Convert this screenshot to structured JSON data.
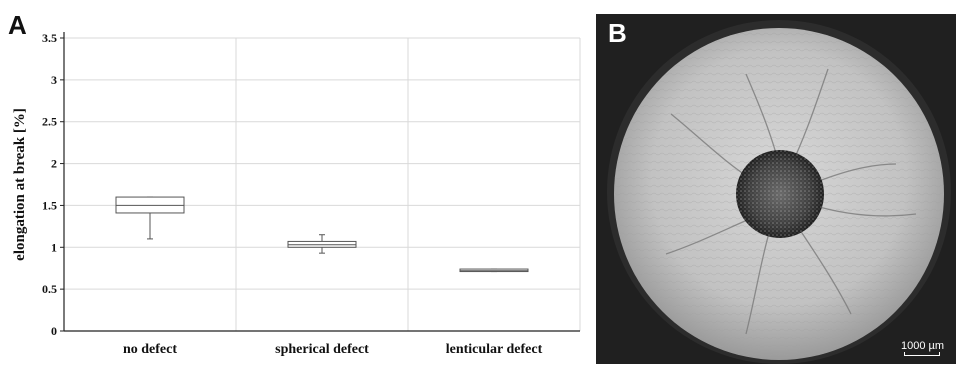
{
  "panels": {
    "a_label": "A",
    "b_label": "B"
  },
  "chart_data": {
    "type": "box",
    "title": "",
    "xlabel": "",
    "ylabel": "elongation at break [%]",
    "ylim": [
      0,
      3.5
    ],
    "yticks": [
      0,
      0.5,
      1,
      1.5,
      2,
      2.5,
      3,
      3.5
    ],
    "ytick_labels": [
      "0",
      "0.5",
      "1",
      "1.5",
      "2",
      "2.5",
      "3",
      "3.5"
    ],
    "grid": true,
    "categories": [
      "no defect",
      "spherical defect",
      "lenticular defect"
    ],
    "boxes": [
      {
        "min": 1.1,
        "q1": 1.41,
        "median": 1.5,
        "q3": 1.6,
        "max": 1.6
      },
      {
        "min": 0.93,
        "q1": 1.0,
        "median": 1.03,
        "q3": 1.07,
        "max": 1.15
      },
      {
        "min": 0.71,
        "q1": 0.71,
        "median": 0.72,
        "q3": 0.74,
        "max": 0.74
      }
    ],
    "colors": {
      "box_stroke": "#555555",
      "grid": "#d9d9d9",
      "axis": "#222222"
    }
  },
  "micrograph": {
    "description_icon": "fracture-surface-micrograph",
    "scale_bar_label": "1000 µm"
  }
}
